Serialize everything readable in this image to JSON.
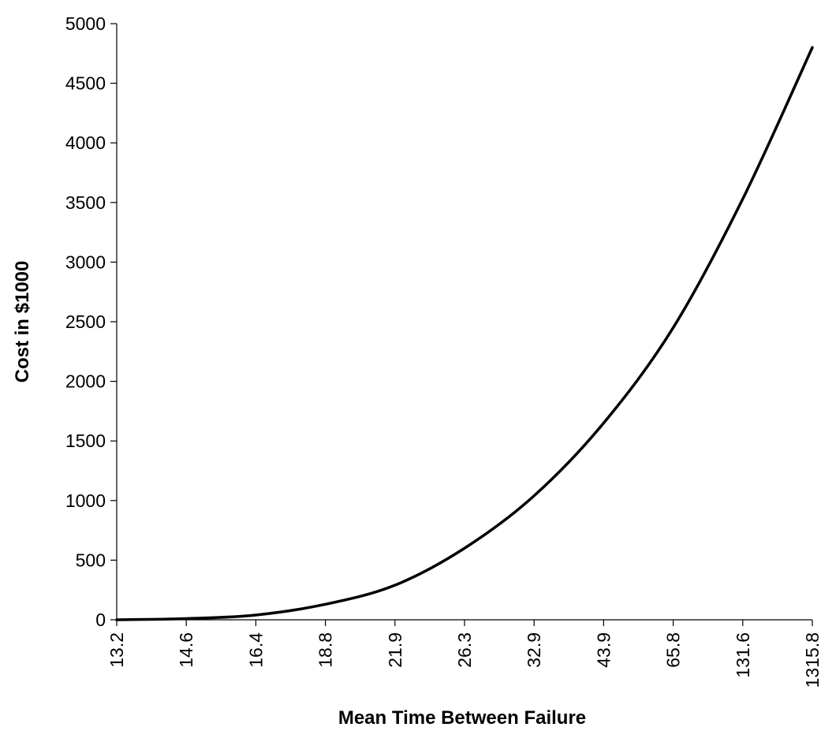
{
  "chart_data": {
    "type": "line",
    "title": "",
    "xlabel": "Mean Time Between Failure",
    "ylabel": "Cost in $1000",
    "categories": [
      "13.2",
      "14.6",
      "16.4",
      "18.8",
      "21.9",
      "26.3",
      "32.9",
      "43.9",
      "65.8",
      "131.6",
      "1315.8"
    ],
    "ylim": [
      0,
      5000
    ],
    "yticks": [
      0,
      500,
      1000,
      1500,
      2000,
      2500,
      3000,
      3500,
      4000,
      4500,
      5000
    ],
    "grid": false,
    "legend": "none",
    "series": [
      {
        "values": [
          0,
          10,
          40,
          130,
          290,
          600,
          1040,
          1650,
          2450,
          3530,
          4800
        ]
      }
    ]
  }
}
